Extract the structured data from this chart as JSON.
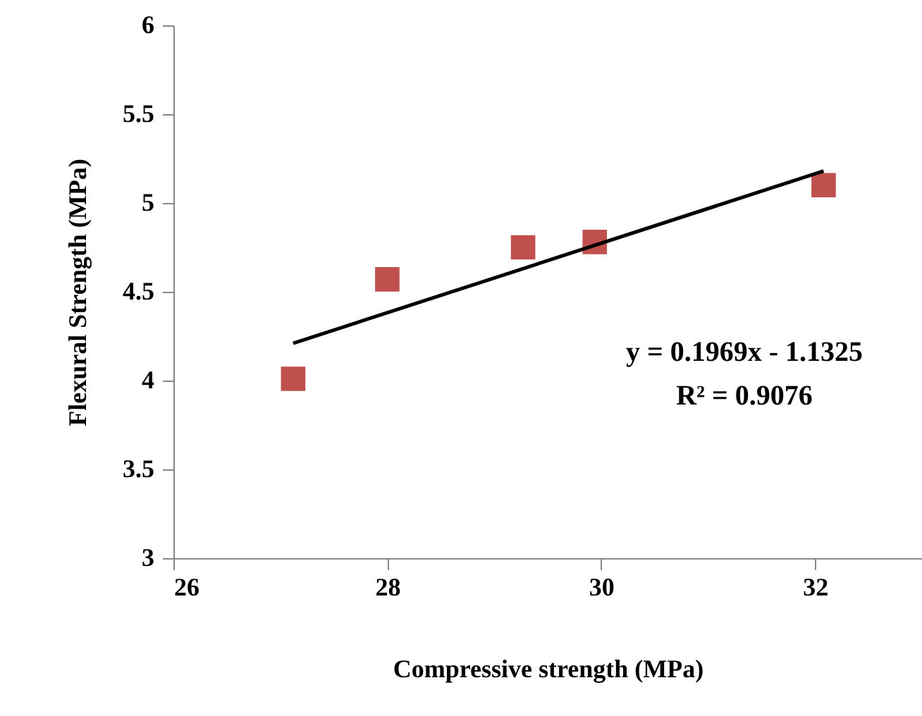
{
  "chart_data": {
    "type": "scatter",
    "xlabel": "Compressive strength (MPa)",
    "ylabel": "Flexural Strength (MPa)",
    "xlim": [
      26,
      33
    ],
    "xticks": [
      26,
      28,
      30,
      32
    ],
    "ylim": [
      3,
      6
    ],
    "yticks": [
      3,
      3.5,
      4,
      4.5,
      5,
      5.5,
      6
    ],
    "marker": "square",
    "series": [
      {
        "color": "#c0504d",
        "x": [
          27.12,
          28.0,
          29.27,
          29.94,
          32.08
        ],
        "values": [
          4.01,
          4.57,
          4.75,
          4.78,
          5.1
        ]
      },
      {
        "type": "line",
        "color": "#000000",
        "line_style": "solid",
        "marker": "none",
        "x": [
          27.12,
          32.08
        ],
        "values": [
          4.21,
          5.18
        ]
      }
    ],
    "annotations": [
      "y = 0.1969x  - 1.1325",
      "R² = 0.9076"
    ]
  }
}
